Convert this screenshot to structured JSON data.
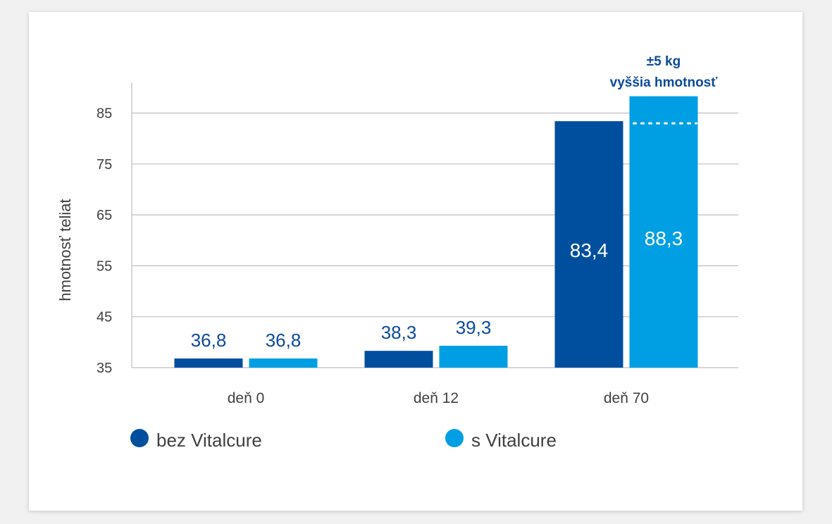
{
  "colors": {
    "series_a": "#004f9f",
    "series_b": "#009fe3",
    "label_blue": "#0b4a9b",
    "grid": "#bfbfbf"
  },
  "chart_data": {
    "type": "bar",
    "ylabel": "hmotnosť teliat",
    "categories": [
      "deň 0",
      "deň 12",
      "deň 70"
    ],
    "yticks": [
      "35",
      "45",
      "55",
      "65",
      "75",
      "85"
    ],
    "ylim": [
      35,
      91
    ],
    "grid": true,
    "legend_position": "bottom",
    "series": [
      {
        "name": "bez Vitalcure",
        "values": [
          36.8,
          38.3,
          83.4
        ],
        "labels": [
          "36,8",
          "38,3",
          "83,4"
        ]
      },
      {
        "name": "s Vitalcure",
        "values": [
          36.8,
          39.3,
          88.3
        ],
        "labels": [
          "36,8",
          "39,3",
          "88,3"
        ]
      }
    ],
    "annotation": {
      "line1": "±5 kg",
      "line2": "vyššia hmotnosť"
    }
  }
}
